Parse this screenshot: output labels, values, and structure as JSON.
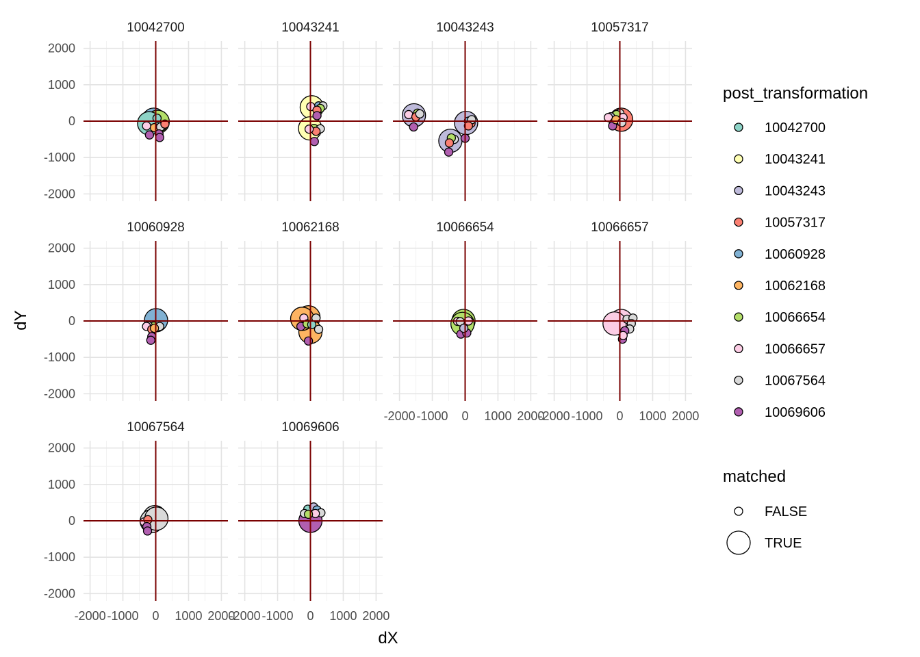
{
  "chart_data": {
    "type": "scatter",
    "facet_by": "post_transformation",
    "facet_layout": "4 columns, 3 rows",
    "xlabel": "dX",
    "ylabel": "dY",
    "xlim": [
      -2200,
      2200
    ],
    "ylim": [
      -2200,
      2200
    ],
    "x_ticks": [
      -2000,
      -1000,
      0,
      1000,
      2000
    ],
    "x_tick_labels": [
      "-2000",
      "-1000",
      "0",
      "1000",
      "2000"
    ],
    "y_ticks": [
      -2000,
      -1000,
      0,
      1000,
      2000
    ],
    "y_tick_labels": [
      "-2000",
      "-1000",
      "0",
      "1000",
      "2000"
    ],
    "grid": true,
    "reference_lines": {
      "x": 0,
      "y": 0,
      "color": "#7a0000"
    },
    "legend_placement": "right",
    "legends": {
      "color": {
        "title": "post_transformation",
        "entries": [
          {
            "label": "10042700",
            "color": "#8dd3c7"
          },
          {
            "label": "10043241",
            "color": "#ffffb3"
          },
          {
            "label": "10043243",
            "color": "#bebada"
          },
          {
            "label": "10057317",
            "color": "#fb8072"
          },
          {
            "label": "10060928",
            "color": "#80b1d3"
          },
          {
            "label": "10062168",
            "color": "#fdb462"
          },
          {
            "label": "10066654",
            "color": "#b3de69"
          },
          {
            "label": "10066657",
            "color": "#fccde5"
          },
          {
            "label": "10067564",
            "color": "#d9d9d9"
          },
          {
            "label": "10069606",
            "color": "#b15fb0"
          }
        ]
      },
      "size": {
        "title": "matched",
        "entries": [
          {
            "label": "FALSE",
            "matched": false
          },
          {
            "label": "TRUE",
            "matched": true
          }
        ]
      }
    },
    "panels": [
      {
        "title": "10042700",
        "matched_color": "#8dd3c7",
        "points": [
          {
            "x": 0,
            "y": 0,
            "color": "#8dd3c7",
            "matched": true
          },
          {
            "x": -60,
            "y": 40,
            "color": "#80b1d3",
            "matched": true
          },
          {
            "x": 60,
            "y": -20,
            "color": "#b3de69",
            "matched": true
          },
          {
            "x": -200,
            "y": -60,
            "color": "#8dd3c7",
            "matched": true
          },
          {
            "x": 200,
            "y": -150,
            "color": "#fb8072",
            "matched": false
          },
          {
            "x": -40,
            "y": -180,
            "color": "#fdb462",
            "matched": false
          },
          {
            "x": -280,
            "y": -130,
            "color": "#fccde5",
            "matched": false
          },
          {
            "x": 150,
            "y": -160,
            "color": "#d9d9d9",
            "matched": false
          },
          {
            "x": 280,
            "y": -80,
            "color": "#fb8072",
            "matched": false
          },
          {
            "x": -190,
            "y": -380,
            "color": "#b15fb0",
            "matched": false
          },
          {
            "x": 100,
            "y": -350,
            "color": "#b15fb0",
            "matched": false
          },
          {
            "x": 120,
            "y": -450,
            "color": "#b15fb0",
            "matched": false
          },
          {
            "x": 40,
            "y": 80,
            "color": "#8dd3c7",
            "matched": false
          }
        ]
      },
      {
        "title": "10043241",
        "matched_color": "#ffffb3",
        "points": [
          {
            "x": 40,
            "y": 380,
            "color": "#ffffb3",
            "matched": true
          },
          {
            "x": -10,
            "y": -200,
            "color": "#ffffb3",
            "matched": true
          },
          {
            "x": 250,
            "y": 420,
            "color": "#80b1d3",
            "matched": false
          },
          {
            "x": 380,
            "y": 420,
            "color": "#d9d9d9",
            "matched": false
          },
          {
            "x": 300,
            "y": 350,
            "color": "#b3de69",
            "matched": false
          },
          {
            "x": 10,
            "y": 400,
            "color": "#fccde5",
            "matched": false
          },
          {
            "x": 200,
            "y": 300,
            "color": "#fb8072",
            "matched": false
          },
          {
            "x": 200,
            "y": 150,
            "color": "#b15fb0",
            "matched": false
          },
          {
            "x": 110,
            "y": -200,
            "color": "#b3de69",
            "matched": false
          },
          {
            "x": 300,
            "y": -210,
            "color": "#d9d9d9",
            "matched": false
          },
          {
            "x": 170,
            "y": -280,
            "color": "#fb8072",
            "matched": false
          },
          {
            "x": 120,
            "y": -560,
            "color": "#b15fb0",
            "matched": false
          },
          {
            "x": -40,
            "y": -220,
            "color": "#fccde5",
            "matched": false
          }
        ]
      },
      {
        "title": "10043243",
        "matched_color": "#bebada",
        "points": [
          {
            "x": -1560,
            "y": 160,
            "color": "#bebada",
            "matched": true
          },
          {
            "x": -450,
            "y": -540,
            "color": "#bebada",
            "matched": true
          },
          {
            "x": 30,
            "y": -50,
            "color": "#bebada",
            "matched": true
          },
          {
            "x": -1450,
            "y": 220,
            "color": "#b3de69",
            "matched": false
          },
          {
            "x": -1720,
            "y": 180,
            "color": "#fccde5",
            "matched": false
          },
          {
            "x": -1500,
            "y": 120,
            "color": "#fb8072",
            "matched": false
          },
          {
            "x": -1380,
            "y": 200,
            "color": "#d9d9d9",
            "matched": false
          },
          {
            "x": -1570,
            "y": -160,
            "color": "#b15fb0",
            "matched": false
          },
          {
            "x": -330,
            "y": -500,
            "color": "#d9d9d9",
            "matched": false
          },
          {
            "x": -420,
            "y": -460,
            "color": "#b3de69",
            "matched": false
          },
          {
            "x": -480,
            "y": -600,
            "color": "#fb8072",
            "matched": false
          },
          {
            "x": -500,
            "y": -850,
            "color": "#b15fb0",
            "matched": false
          },
          {
            "x": 100,
            "y": 0,
            "color": "#80b1d3",
            "matched": false
          },
          {
            "x": 180,
            "y": -60,
            "color": "#fb8072",
            "matched": false
          },
          {
            "x": 200,
            "y": 40,
            "color": "#d9d9d9",
            "matched": false
          },
          {
            "x": 0,
            "y": -470,
            "color": "#b15fb0",
            "matched": false
          },
          {
            "x": 100,
            "y": -130,
            "color": "#fb8072",
            "matched": false
          }
        ]
      },
      {
        "title": "10057317",
        "matched_color": "#fb8072",
        "points": [
          {
            "x": 40,
            "y": 40,
            "color": "#fb8072",
            "matched": true
          },
          {
            "x": -180,
            "y": 80,
            "color": "#80b1d3",
            "matched": false
          },
          {
            "x": 0,
            "y": 220,
            "color": "#d9d9d9",
            "matched": false
          },
          {
            "x": -100,
            "y": 180,
            "color": "#b3de69",
            "matched": false
          },
          {
            "x": -280,
            "y": 120,
            "color": "#bebada",
            "matched": false
          },
          {
            "x": -350,
            "y": 100,
            "color": "#fccde5",
            "matched": false
          },
          {
            "x": -200,
            "y": -60,
            "color": "#8dd3c7",
            "matched": false
          },
          {
            "x": -220,
            "y": -130,
            "color": "#b15fb0",
            "matched": false
          },
          {
            "x": 100,
            "y": 100,
            "color": "#fccde5",
            "matched": false
          },
          {
            "x": -120,
            "y": 40,
            "color": "#fdb462",
            "matched": false
          },
          {
            "x": 60,
            "y": -40,
            "color": "#d9d9d9",
            "matched": false
          }
        ]
      },
      {
        "title": "10060928",
        "matched_color": "#80b1d3",
        "points": [
          {
            "x": 10,
            "y": 20,
            "color": "#80b1d3",
            "matched": true
          },
          {
            "x": -60,
            "y": -140,
            "color": "#b3de69",
            "matched": false
          },
          {
            "x": -230,
            "y": -130,
            "color": "#d9d9d9",
            "matched": false
          },
          {
            "x": -280,
            "y": -150,
            "color": "#fccde5",
            "matched": false
          },
          {
            "x": 120,
            "y": -150,
            "color": "#d9d9d9",
            "matched": false
          },
          {
            "x": -120,
            "y": -230,
            "color": "#fb8072",
            "matched": false
          },
          {
            "x": -120,
            "y": -430,
            "color": "#b15fb0",
            "matched": false
          },
          {
            "x": -150,
            "y": -530,
            "color": "#b15fb0",
            "matched": false
          },
          {
            "x": -40,
            "y": -200,
            "color": "#fdb462",
            "matched": false
          }
        ]
      },
      {
        "title": "10062168",
        "matched_color": "#fdb462",
        "points": [
          {
            "x": -60,
            "y": 100,
            "color": "#fdb462",
            "matched": true
          },
          {
            "x": 0,
            "y": -300,
            "color": "#fdb462",
            "matched": true
          },
          {
            "x": -250,
            "y": 60,
            "color": "#fdb462",
            "matched": true
          },
          {
            "x": -200,
            "y": 80,
            "color": "#fccde5",
            "matched": false
          },
          {
            "x": -290,
            "y": -150,
            "color": "#b15fb0",
            "matched": false
          },
          {
            "x": 170,
            "y": 80,
            "color": "#d9d9d9",
            "matched": false
          },
          {
            "x": 250,
            "y": -230,
            "color": "#d9d9d9",
            "matched": false
          },
          {
            "x": -60,
            "y": -550,
            "color": "#b15fb0",
            "matched": false
          },
          {
            "x": -100,
            "y": -80,
            "color": "#b3de69",
            "matched": false
          },
          {
            "x": 40,
            "y": -100,
            "color": "#8dd3c7",
            "matched": false
          }
        ]
      },
      {
        "title": "10066654",
        "matched_color": "#b3de69",
        "points": [
          {
            "x": -50,
            "y": 0,
            "color": "#b3de69",
            "matched": true
          },
          {
            "x": -80,
            "y": -80,
            "color": "#b3de69",
            "matched": true
          },
          {
            "x": -230,
            "y": -10,
            "color": "#fccde5",
            "matched": false
          },
          {
            "x": -150,
            "y": -20,
            "color": "#d9d9d9",
            "matched": false
          },
          {
            "x": 100,
            "y": 0,
            "color": "#fccde5",
            "matched": false
          },
          {
            "x": -130,
            "y": -360,
            "color": "#b15fb0",
            "matched": false
          },
          {
            "x": 50,
            "y": -330,
            "color": "#b15fb0",
            "matched": false
          },
          {
            "x": -40,
            "y": -200,
            "color": "#bebada",
            "matched": false
          }
        ]
      },
      {
        "title": "10066657",
        "matched_color": "#fccde5",
        "points": [
          {
            "x": 40,
            "y": 0,
            "color": "#fccde5",
            "matched": true
          },
          {
            "x": -160,
            "y": -70,
            "color": "#fccde5",
            "matched": true
          },
          {
            "x": 220,
            "y": 50,
            "color": "#d9d9d9",
            "matched": false
          },
          {
            "x": 400,
            "y": 80,
            "color": "#d9d9d9",
            "matched": false
          },
          {
            "x": 350,
            "y": -70,
            "color": "#d9d9d9",
            "matched": false
          },
          {
            "x": 300,
            "y": -220,
            "color": "#d9d9d9",
            "matched": false
          },
          {
            "x": 150,
            "y": -270,
            "color": "#b15fb0",
            "matched": false
          },
          {
            "x": 80,
            "y": -500,
            "color": "#b15fb0",
            "matched": false
          },
          {
            "x": 100,
            "y": -400,
            "color": "#fccde5",
            "matched": false
          }
        ]
      },
      {
        "title": "10067564",
        "matched_color": "#d9d9d9",
        "points": [
          {
            "x": -30,
            "y": 100,
            "color": "#d9d9d9",
            "matched": true
          },
          {
            "x": -120,
            "y": -10,
            "color": "#d9d9d9",
            "matched": true
          },
          {
            "x": -350,
            "y": -30,
            "color": "#fccde5",
            "matched": false
          },
          {
            "x": -240,
            "y": 30,
            "color": "#fb8072",
            "matched": false
          },
          {
            "x": -270,
            "y": -160,
            "color": "#b15fb0",
            "matched": false
          },
          {
            "x": -250,
            "y": -280,
            "color": "#b15fb0",
            "matched": false
          },
          {
            "x": 20,
            "y": 60,
            "color": "#d9d9d9",
            "matched": true
          }
        ]
      },
      {
        "title": "10069606",
        "matched_color": "#b15fb0",
        "points": [
          {
            "x": 0,
            "y": 0,
            "color": "#b15fb0",
            "matched": true
          },
          {
            "x": -80,
            "y": 320,
            "color": "#8dd3c7",
            "matched": false
          },
          {
            "x": 100,
            "y": 380,
            "color": "#bebada",
            "matched": false
          },
          {
            "x": 200,
            "y": 300,
            "color": "#80b1d3",
            "matched": false
          },
          {
            "x": 320,
            "y": 220,
            "color": "#d9d9d9",
            "matched": false
          },
          {
            "x": -180,
            "y": 200,
            "color": "#d9d9d9",
            "matched": false
          },
          {
            "x": 150,
            "y": 200,
            "color": "#fccde5",
            "matched": false
          },
          {
            "x": -60,
            "y": 180,
            "color": "#b3de69",
            "matched": false
          }
        ]
      }
    ]
  }
}
